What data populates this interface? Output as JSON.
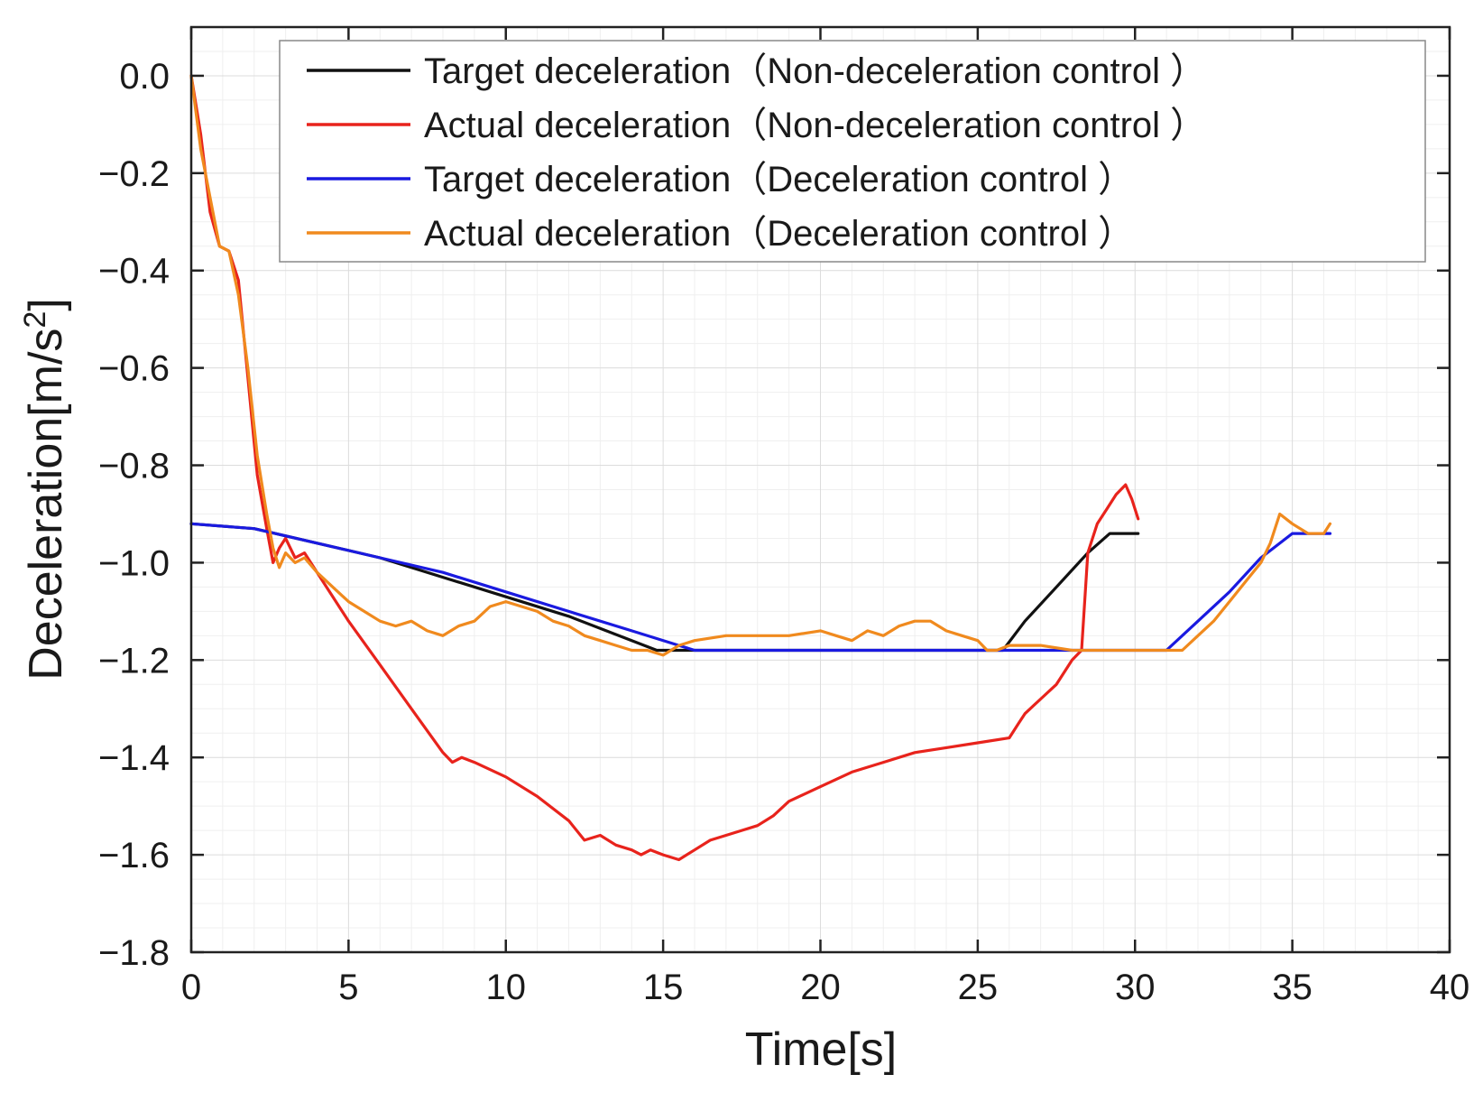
{
  "chart_data": {
    "type": "line",
    "title": "",
    "xlabel": "Time[s]",
    "ylabel": "Deceleration[m/s2]",
    "ylabel_base": "Deceleration[m/s",
    "ylabel_sup": "2",
    "ylabel_close": "]",
    "xlim": [
      0,
      40
    ],
    "ylim": [
      -1.8,
      0.1
    ],
    "xticks": [
      0,
      5,
      10,
      15,
      20,
      25,
      30,
      35,
      40
    ],
    "xtick_labels": [
      "0",
      "5",
      "10",
      "15",
      "20",
      "25",
      "30",
      "35",
      "40"
    ],
    "yticks": [
      0.0,
      -0.2,
      -0.4,
      -0.6,
      -0.8,
      -1.0,
      -1.2,
      -1.4,
      -1.6,
      -1.8
    ],
    "ytick_labels": [
      "0.0",
      "−0.2",
      "−0.4",
      "−0.6",
      "−0.8",
      "−1.0",
      "−1.2",
      "−1.4",
      "−1.6",
      "−1.8"
    ],
    "grid": true,
    "legend_position": "top-right",
    "series": [
      {
        "name": "Target deceleration（Non-deceleration control ）",
        "color": "#111111",
        "x": [
          0,
          2,
          4,
          6,
          8,
          10,
          12,
          14,
          14.8,
          15,
          16,
          18,
          20,
          22,
          24,
          25.8,
          26.5,
          27.5,
          28.5,
          29.2,
          30.1
        ],
        "y": [
          -0.92,
          -0.93,
          -0.96,
          -0.99,
          -1.03,
          -1.07,
          -1.11,
          -1.16,
          -1.18,
          -1.18,
          -1.18,
          -1.18,
          -1.18,
          -1.18,
          -1.18,
          -1.18,
          -1.12,
          -1.05,
          -0.98,
          -0.94,
          -0.94
        ]
      },
      {
        "name": "Actual deceleration（Non-deceleration control ）",
        "color": "#e8231c",
        "x": [
          0,
          0.3,
          0.6,
          0.9,
          1.2,
          1.5,
          1.8,
          2.1,
          2.4,
          2.6,
          2.8,
          3,
          3.3,
          3.6,
          4,
          5,
          6,
          7,
          8,
          8.3,
          8.6,
          9,
          10,
          11,
          12,
          12.5,
          13,
          13.5,
          14,
          14.3,
          14.6,
          15,
          15.5,
          16,
          16.5,
          17,
          17.5,
          18,
          18.5,
          19,
          20,
          21,
          22,
          23,
          24,
          25,
          26,
          26.3,
          26.5,
          27,
          27.5,
          28,
          28.3,
          28.5,
          28.8,
          29.1,
          29.4,
          29.7,
          29.9,
          30.1
        ],
        "y": [
          0.0,
          -0.12,
          -0.28,
          -0.35,
          -0.36,
          -0.42,
          -0.62,
          -0.82,
          -0.93,
          -1.0,
          -0.97,
          -0.95,
          -0.99,
          -0.98,
          -1.02,
          -1.12,
          -1.21,
          -1.3,
          -1.39,
          -1.41,
          -1.4,
          -1.41,
          -1.44,
          -1.48,
          -1.53,
          -1.57,
          -1.56,
          -1.58,
          -1.59,
          -1.6,
          -1.59,
          -1.6,
          -1.61,
          -1.59,
          -1.57,
          -1.56,
          -1.55,
          -1.54,
          -1.52,
          -1.49,
          -1.46,
          -1.43,
          -1.41,
          -1.39,
          -1.38,
          -1.37,
          -1.36,
          -1.33,
          -1.31,
          -1.28,
          -1.25,
          -1.2,
          -1.18,
          -0.98,
          -0.92,
          -0.89,
          -0.86,
          -0.84,
          -0.87,
          -0.91
        ]
      },
      {
        "name": "Target deceleration（Deceleration control ）",
        "color": "#1a1ae0",
        "x": [
          0,
          2,
          4,
          6,
          8,
          10,
          12,
          14,
          15.5,
          16,
          18,
          20,
          22,
          24,
          26,
          28,
          30,
          31,
          32,
          33,
          34,
          35,
          36,
          36.2
        ],
        "y": [
          -0.92,
          -0.93,
          -0.96,
          -0.99,
          -1.02,
          -1.06,
          -1.1,
          -1.14,
          -1.17,
          -1.18,
          -1.18,
          -1.18,
          -1.18,
          -1.18,
          -1.18,
          -1.18,
          -1.18,
          -1.18,
          -1.12,
          -1.06,
          -0.99,
          -0.94,
          -0.94,
          -0.94
        ]
      },
      {
        "name": "Actual deceleration（Deceleration control ）",
        "color": "#f08a1e",
        "x": [
          0,
          0.3,
          0.6,
          0.9,
          1.2,
          1.5,
          1.8,
          2.1,
          2.4,
          2.6,
          2.8,
          3,
          3.3,
          3.6,
          4,
          4.5,
          5,
          5.5,
          6,
          6.5,
          7,
          7.5,
          8,
          8.5,
          9,
          9.5,
          10,
          10.5,
          11,
          11.5,
          12,
          12.5,
          13,
          13.5,
          14,
          14.5,
          15,
          15.5,
          16,
          17,
          18,
          19,
          20,
          20.5,
          21,
          21.5,
          22,
          22.5,
          23,
          23.5,
          24,
          24.5,
          25,
          25.3,
          25.6,
          26,
          27,
          28,
          29,
          30,
          31,
          31.5,
          32,
          32.5,
          33,
          33.5,
          34,
          34.3,
          34.6,
          35,
          35.5,
          36,
          36.2
        ],
        "y": [
          0.0,
          -0.15,
          -0.25,
          -0.35,
          -0.36,
          -0.45,
          -0.6,
          -0.78,
          -0.9,
          -0.97,
          -1.01,
          -0.98,
          -1.0,
          -0.99,
          -1.02,
          -1.05,
          -1.08,
          -1.1,
          -1.12,
          -1.13,
          -1.12,
          -1.14,
          -1.15,
          -1.13,
          -1.12,
          -1.09,
          -1.08,
          -1.09,
          -1.1,
          -1.12,
          -1.13,
          -1.15,
          -1.16,
          -1.17,
          -1.18,
          -1.18,
          -1.19,
          -1.17,
          -1.16,
          -1.15,
          -1.15,
          -1.15,
          -1.14,
          -1.15,
          -1.16,
          -1.14,
          -1.15,
          -1.13,
          -1.12,
          -1.12,
          -1.14,
          -1.15,
          -1.16,
          -1.18,
          -1.18,
          -1.17,
          -1.17,
          -1.18,
          -1.18,
          -1.18,
          -1.18,
          -1.18,
          -1.15,
          -1.12,
          -1.08,
          -1.04,
          -1.0,
          -0.96,
          -0.9,
          -0.92,
          -0.94,
          -0.94,
          -0.92
        ]
      }
    ]
  }
}
